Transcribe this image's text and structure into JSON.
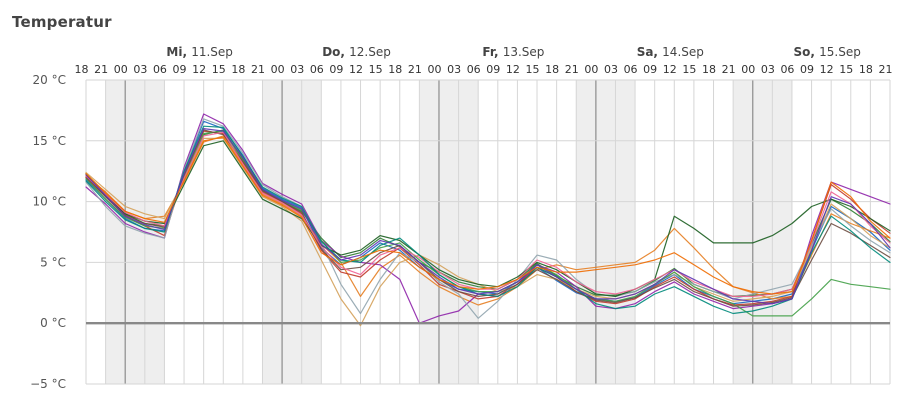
{
  "header": {
    "title": "Temperatur"
  },
  "chart_data": {
    "type": "line",
    "title": "Temperatur",
    "xlabel": "",
    "ylabel": "",
    "ylim": [
      -5,
      20
    ],
    "y_ticks": [
      20,
      15,
      10,
      5,
      0,
      -5
    ],
    "y_tick_labels": [
      "20 °C",
      "15 °C",
      "10 °C",
      "5 °C",
      "0 °C",
      "−5 °C"
    ],
    "x_unit_hours": 3,
    "x_hour_labels": [
      "18",
      "21",
      "00",
      "03",
      "06",
      "09",
      "12",
      "15",
      "18",
      "21",
      "00",
      "03",
      "06",
      "09",
      "12",
      "15",
      "18",
      "21",
      "00",
      "03",
      "06",
      "09",
      "12",
      "15",
      "18",
      "21",
      "00",
      "03",
      "06",
      "09",
      "12",
      "15",
      "18",
      "21",
      "00",
      "03",
      "06",
      "09",
      "12",
      "15",
      "18",
      "21"
    ],
    "x_day_labels": [
      {
        "name": "Mi",
        "date": "11.Sep"
      },
      {
        "name": "Do",
        "date": "12.Sep"
      },
      {
        "name": "Fr",
        "date": "13.Sep"
      },
      {
        "name": "Sa",
        "date": "14.Sep"
      },
      {
        "name": "So",
        "date": "15.Sep"
      }
    ],
    "night_shading": true,
    "grid": true,
    "colors": {
      "grid": "#d6d6d6",
      "midnight": "#9a9a9a",
      "zero_line": "#888888",
      "night": "#eeeeee",
      "text": "#444444"
    },
    "series": [
      {
        "color": "#2e7d32",
        "values": [
          12.3,
          10.5,
          9.0,
          8.2,
          8.0,
          12.0,
          15.5,
          15.9,
          13.5,
          11.0,
          10.0,
          9.2,
          7.0,
          5.4,
          5.8,
          7.0,
          6.3,
          5.0,
          4.2,
          3.4,
          3.0,
          2.8,
          3.6,
          4.9,
          3.9,
          3.0,
          2.3,
          2.3,
          2.6,
          3.5,
          4.5,
          3.2,
          2.6,
          2.2,
          2.3,
          2.4,
          2.8,
          6.5,
          10.2,
          9.3,
          8.2,
          6.7
        ]
      },
      {
        "color": "#1565c0",
        "values": [
          11.8,
          10.2,
          8.6,
          7.8,
          7.6,
          12.4,
          16.6,
          16.0,
          13.8,
          11.1,
          10.2,
          9.5,
          6.2,
          4.8,
          5.4,
          6.6,
          6.0,
          4.6,
          3.6,
          2.8,
          2.6,
          2.4,
          3.4,
          4.6,
          3.5,
          2.5,
          2.0,
          1.8,
          2.1,
          3.1,
          4.0,
          2.8,
          2.2,
          1.6,
          1.8,
          2.0,
          2.4,
          6.0,
          9.6,
          8.6,
          7.5,
          6.0
        ]
      },
      {
        "color": "#e67e22",
        "values": [
          12.1,
          10.8,
          9.2,
          8.6,
          8.8,
          11.6,
          14.9,
          15.4,
          13.0,
          10.6,
          9.8,
          8.8,
          6.5,
          5.0,
          2.2,
          4.5,
          5.6,
          4.2,
          3.0,
          2.2,
          1.5,
          2.0,
          3.0,
          4.4,
          4.8,
          4.4,
          4.6,
          4.8,
          5.0,
          6.0,
          7.8,
          6.2,
          4.5,
          3.0,
          2.5,
          2.0,
          2.2,
          5.6,
          9.0,
          8.2,
          7.6,
          7.0
        ]
      },
      {
        "color": "#8e24aa",
        "values": [
          11.2,
          9.8,
          8.2,
          7.5,
          7.0,
          12.8,
          17.2,
          16.4,
          14.2,
          11.5,
          10.6,
          9.8,
          6.8,
          5.5,
          5.0,
          4.8,
          3.6,
          0.0,
          0.6,
          1.0,
          2.4,
          2.2,
          3.2,
          4.8,
          4.2,
          3.0,
          1.4,
          1.2,
          1.6,
          2.6,
          3.4,
          2.4,
          1.8,
          1.2,
          1.4,
          1.6,
          2.0,
          7.2,
          11.6,
          11.0,
          10.4,
          9.8
        ]
      },
      {
        "color": "#c0392b",
        "values": [
          12.0,
          10.4,
          8.8,
          8.0,
          7.2,
          12.2,
          15.8,
          15.6,
          13.2,
          10.8,
          10.0,
          9.0,
          6.0,
          4.2,
          3.8,
          5.2,
          6.2,
          4.8,
          3.2,
          2.6,
          2.0,
          2.2,
          3.2,
          4.6,
          3.8,
          2.6,
          1.8,
          1.6,
          2.0,
          3.0,
          3.8,
          2.8,
          2.0,
          1.5,
          1.6,
          1.8,
          2.2,
          6.8,
          11.4,
          10.2,
          8.6,
          7.4
        ]
      },
      {
        "color": "#d4a15a",
        "values": [
          12.4,
          11.0,
          9.6,
          9.0,
          8.6,
          11.8,
          15.2,
          15.2,
          12.8,
          10.4,
          9.6,
          8.4,
          5.2,
          2.0,
          -0.2,
          3.0,
          5.0,
          5.6,
          4.8,
          3.8,
          3.2,
          2.6,
          3.0,
          4.0,
          3.6,
          2.8,
          2.2,
          2.0,
          2.4,
          3.2,
          4.2,
          3.0,
          2.4,
          1.8,
          2.0,
          2.2,
          2.6,
          6.2,
          9.8,
          8.6,
          7.2,
          6.2
        ]
      },
      {
        "color": "#90a4ae",
        "values": [
          11.6,
          9.6,
          8.0,
          7.4,
          7.0,
          12.6,
          16.8,
          16.2,
          14.0,
          11.4,
          10.4,
          9.6,
          6.6,
          3.2,
          0.8,
          3.6,
          5.8,
          5.0,
          3.4,
          2.4,
          0.4,
          1.8,
          3.6,
          5.6,
          5.2,
          3.6,
          2.4,
          2.2,
          2.6,
          3.4,
          4.0,
          3.2,
          2.6,
          2.0,
          2.4,
          2.8,
          3.2,
          6.4,
          9.4,
          8.0,
          6.8,
          5.8
        ]
      },
      {
        "color": "#1b5e20",
        "values": [
          12.2,
          10.6,
          9.0,
          8.4,
          8.2,
          11.4,
          14.6,
          15.0,
          12.6,
          10.2,
          9.4,
          8.6,
          6.4,
          5.6,
          6.0,
          7.2,
          6.8,
          5.6,
          4.4,
          3.6,
          3.2,
          3.0,
          3.8,
          5.0,
          4.4,
          3.4,
          2.4,
          2.2,
          2.8,
          3.6,
          8.8,
          7.8,
          6.6,
          6.6,
          6.6,
          7.2,
          8.2,
          9.6,
          10.2,
          9.6,
          8.6,
          7.6
        ]
      },
      {
        "color": "#43a047",
        "values": [
          11.9,
          10.2,
          8.7,
          8.0,
          7.8,
          12.0,
          15.6,
          15.8,
          13.4,
          10.9,
          10.1,
          9.3,
          6.8,
          5.0,
          5.2,
          6.2,
          6.6,
          5.2,
          4.0,
          3.0,
          2.6,
          2.6,
          3.4,
          4.8,
          4.0,
          2.8,
          2.0,
          1.8,
          2.2,
          3.2,
          4.2,
          3.0,
          2.2,
          1.6,
          0.6,
          0.6,
          0.6,
          2.0,
          3.6,
          3.2,
          3.0,
          2.8
        ]
      },
      {
        "color": "#6d4c41",
        "values": [
          12.0,
          10.4,
          8.9,
          8.2,
          7.9,
          12.2,
          15.9,
          15.5,
          13.3,
          10.9,
          10.0,
          9.1,
          6.1,
          4.4,
          4.6,
          5.8,
          6.4,
          5.0,
          3.6,
          2.6,
          2.2,
          2.4,
          3.2,
          4.4,
          3.6,
          2.6,
          1.9,
          1.7,
          2.1,
          2.9,
          3.6,
          2.6,
          2.0,
          1.4,
          1.5,
          1.7,
          2.1,
          5.2,
          8.2,
          7.4,
          6.4,
          5.4
        ]
      },
      {
        "color": "#f06292",
        "values": [
          12.1,
          10.6,
          9.1,
          8.4,
          8.0,
          11.9,
          15.4,
          15.7,
          13.1,
          10.7,
          9.9,
          8.9,
          6.3,
          4.6,
          4.0,
          5.6,
          6.2,
          5.4,
          4.2,
          3.2,
          2.8,
          2.8,
          3.6,
          5.2,
          4.6,
          3.4,
          2.6,
          2.4,
          2.8,
          3.6,
          4.4,
          3.4,
          2.8,
          2.2,
          2.2,
          2.4,
          2.8,
          6.6,
          10.8,
          9.8,
          8.0,
          6.6
        ]
      },
      {
        "color": "#00897b",
        "values": [
          11.7,
          10.0,
          8.5,
          7.8,
          7.5,
          12.5,
          16.2,
          16.1,
          13.7,
          11.2,
          10.3,
          9.6,
          6.7,
          5.2,
          5.0,
          6.4,
          7.0,
          5.6,
          4.0,
          3.0,
          2.4,
          2.2,
          3.0,
          4.6,
          3.8,
          2.8,
          1.6,
          1.2,
          1.4,
          2.4,
          3.0,
          2.2,
          1.4,
          0.8,
          1.0,
          1.4,
          2.0,
          5.8,
          8.8,
          7.6,
          6.2,
          5.0
        ]
      },
      {
        "color": "#5e35b1",
        "values": [
          12.2,
          10.5,
          8.8,
          8.1,
          7.7,
          12.3,
          16.0,
          15.8,
          13.6,
          11.0,
          10.1,
          9.4,
          6.5,
          5.2,
          5.6,
          6.8,
          6.4,
          5.0,
          3.8,
          2.8,
          2.4,
          2.6,
          3.4,
          4.8,
          3.8,
          2.8,
          2.0,
          2.0,
          2.4,
          3.2,
          4.4,
          3.6,
          2.8,
          2.0,
          1.8,
          1.6,
          2.0,
          6.0,
          10.4,
          9.8,
          8.2,
          6.2
        ]
      },
      {
        "color": "#ef6c00",
        "values": [
          12.3,
          10.7,
          9.2,
          8.6,
          8.3,
          11.7,
          15.0,
          15.3,
          12.9,
          10.5,
          9.7,
          8.7,
          5.8,
          4.8,
          5.4,
          6.0,
          5.8,
          4.6,
          3.6,
          3.0,
          2.8,
          3.0,
          3.6,
          4.6,
          4.2,
          4.2,
          4.4,
          4.6,
          4.8,
          5.2,
          5.8,
          4.8,
          3.8,
          3.0,
          2.6,
          2.4,
          2.6,
          6.8,
          11.6,
          10.4,
          8.4,
          7.0
        ]
      }
    ]
  }
}
